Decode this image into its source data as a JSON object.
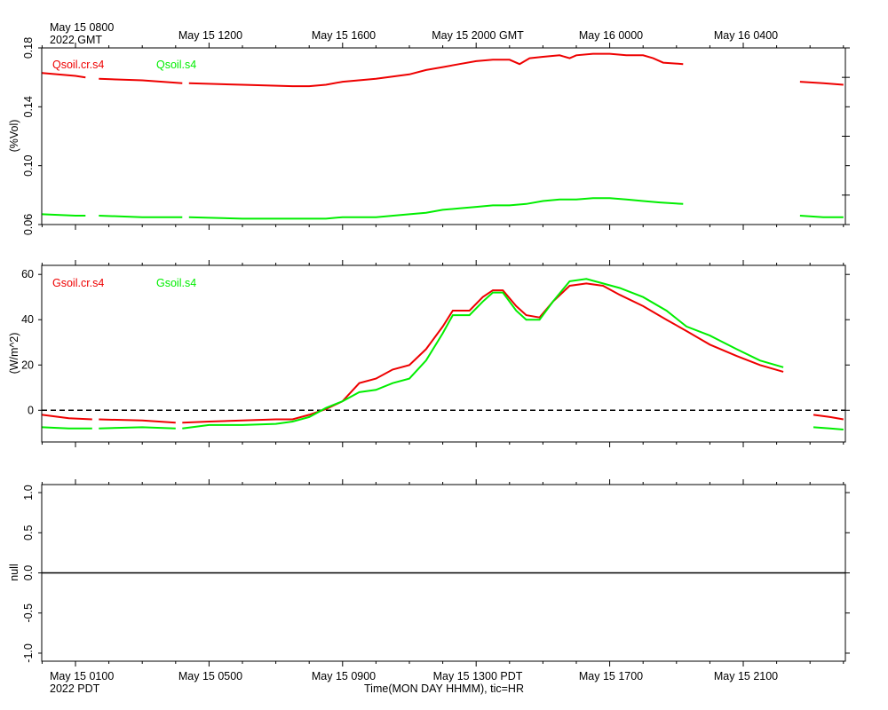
{
  "top_axis": {
    "labels": [
      "May 15 0800",
      "May 15 1200",
      "May 15 1600",
      "May 15 2000 GMT",
      "May 16 0000",
      "May 16 0400"
    ],
    "year_label": "2022 GMT"
  },
  "bottom_axis": {
    "labels": [
      "May 15 0100",
      "May 15 0500",
      "May 15 0900",
      "May 15 1300 PDT",
      "May 15 1700",
      "May 15 2100"
    ],
    "year_label": "2022 PDT",
    "title": "Time(MON DAY HHMM), tic=HR"
  },
  "colors": {
    "red": "#ee0000",
    "green": "#00ee00"
  },
  "chart_data": [
    {
      "type": "line",
      "ylabel": "(%Vol)",
      "ylim": [
        0.06,
        0.18
      ],
      "yticks": [
        0.06,
        0.1,
        0.14,
        0.18
      ],
      "ytick_labels": [
        "0.06",
        "0.10",
        "0.14",
        "0.18"
      ],
      "xunit": "hours since May 15 0000 PDT",
      "xlim": [
        0,
        24
      ],
      "series": [
        {
          "name": "Qsoil.cr.s4",
          "color": "#ee0000",
          "segments": [
            [
              [
                0,
                0.163
              ],
              [
                1.0,
                0.161
              ],
              [
                1.3,
                0.16
              ]
            ],
            [
              [
                1.7,
                0.159
              ],
              [
                3,
                0.158
              ],
              [
                4.2,
                0.156
              ]
            ],
            [
              [
                4.4,
                0.156
              ],
              [
                6,
                0.155
              ],
              [
                7.5,
                0.154
              ],
              [
                8,
                0.154
              ],
              [
                8.5,
                0.155
              ],
              [
                9,
                0.157
              ],
              [
                10,
                0.159
              ],
              [
                11,
                0.162
              ],
              [
                11.5,
                0.165
              ],
              [
                12,
                0.167
              ],
              [
                12.5,
                0.169
              ],
              [
                13,
                0.171
              ],
              [
                13.5,
                0.172
              ],
              [
                14,
                0.172
              ],
              [
                14.3,
                0.169
              ],
              [
                14.6,
                0.173
              ],
              [
                15,
                0.174
              ],
              [
                15.5,
                0.175
              ],
              [
                15.8,
                0.173
              ],
              [
                16,
                0.175
              ],
              [
                16.5,
                0.176
              ],
              [
                17,
                0.176
              ],
              [
                17.5,
                0.175
              ],
              [
                18,
                0.175
              ],
              [
                18.3,
                0.173
              ],
              [
                18.6,
                0.17
              ],
              [
                19.2,
                0.169
              ]
            ]
          ],
          "segments2": [
            [
              [
                22.7,
                0.157
              ],
              [
                23.4,
                0.156
              ],
              [
                24,
                0.155
              ]
            ]
          ]
        },
        {
          "name": "Qsoil.s4",
          "color": "#00ee00",
          "segments": [
            [
              [
                0,
                0.067
              ],
              [
                1.0,
                0.066
              ],
              [
                1.3,
                0.066
              ]
            ],
            [
              [
                1.7,
                0.066
              ],
              [
                3,
                0.065
              ],
              [
                4.2,
                0.065
              ]
            ],
            [
              [
                4.4,
                0.065
              ],
              [
                6,
                0.064
              ],
              [
                7.5,
                0.064
              ],
              [
                8.5,
                0.064
              ],
              [
                9,
                0.065
              ],
              [
                10,
                0.065
              ],
              [
                11,
                0.067
              ],
              [
                11.5,
                0.068
              ],
              [
                12,
                0.07
              ],
              [
                12.5,
                0.071
              ],
              [
                13,
                0.072
              ],
              [
                13.5,
                0.073
              ],
              [
                14,
                0.073
              ],
              [
                14.5,
                0.074
              ],
              [
                15,
                0.076
              ],
              [
                15.5,
                0.077
              ],
              [
                16,
                0.077
              ],
              [
                16.5,
                0.078
              ],
              [
                17,
                0.078
              ],
              [
                17.5,
                0.077
              ],
              [
                18,
                0.076
              ],
              [
                18.5,
                0.075
              ],
              [
                19.2,
                0.074
              ]
            ]
          ],
          "segments2": [
            [
              [
                22.7,
                0.066
              ],
              [
                23.4,
                0.065
              ],
              [
                24,
                0.065
              ]
            ]
          ]
        }
      ]
    },
    {
      "type": "line",
      "ylabel": "(W/m^2)",
      "ylim": [
        -14,
        64
      ],
      "yticks": [
        0,
        20,
        40,
        60
      ],
      "ytick_labels": [
        "0",
        "20",
        "40",
        "60"
      ],
      "reference_line": 0,
      "xunit": "hours since May 15 0000 PDT",
      "xlim": [
        0,
        24
      ],
      "series": [
        {
          "name": "Gsoil.cr.s4",
          "color": "#ee0000",
          "segments": [
            [
              [
                0,
                -2
              ],
              [
                0.8,
                -3.5
              ],
              [
                1.5,
                -4
              ]
            ],
            [
              [
                1.7,
                -4
              ],
              [
                3,
                -4.5
              ],
              [
                4.0,
                -5.5
              ]
            ],
            [
              [
                4.2,
                -5.5
              ],
              [
                5,
                -5
              ],
              [
                6,
                -4.5
              ],
              [
                7,
                -4
              ],
              [
                7.5,
                -4
              ],
              [
                8,
                -2
              ],
              [
                8.5,
                0.5
              ],
              [
                9,
                4
              ],
              [
                9.5,
                12
              ],
              [
                10,
                14
              ],
              [
                10.5,
                18
              ],
              [
                11,
                20
              ],
              [
                11.5,
                27
              ],
              [
                12,
                37
              ],
              [
                12.3,
                44
              ],
              [
                12.8,
                44
              ],
              [
                13.2,
                50
              ],
              [
                13.5,
                53
              ],
              [
                13.8,
                53
              ],
              [
                14.2,
                46
              ],
              [
                14.5,
                42
              ],
              [
                14.9,
                41
              ],
              [
                15.3,
                48
              ],
              [
                15.8,
                55
              ],
              [
                16.3,
                56
              ],
              [
                16.8,
                55
              ],
              [
                17.3,
                51
              ],
              [
                18,
                46
              ],
              [
                18.7,
                40
              ],
              [
                19.3,
                35
              ],
              [
                20,
                29
              ],
              [
                20.8,
                24
              ],
              [
                21.5,
                20
              ],
              [
                22.2,
                17
              ]
            ]
          ],
          "segments2": [
            [
              [
                23.1,
                -2
              ],
              [
                23.6,
                -3
              ],
              [
                24,
                -4
              ]
            ]
          ]
        },
        {
          "name": "Gsoil.s4",
          "color": "#00ee00",
          "segments": [
            [
              [
                0,
                -7.5
              ],
              [
                0.8,
                -8
              ],
              [
                1.5,
                -8
              ]
            ],
            [
              [
                1.7,
                -8
              ],
              [
                3,
                -7.5
              ],
              [
                4.0,
                -8
              ]
            ],
            [
              [
                4.2,
                -8
              ],
              [
                5,
                -6.5
              ],
              [
                6,
                -6.5
              ],
              [
                7,
                -6
              ],
              [
                7.5,
                -5
              ],
              [
                8,
                -3
              ],
              [
                8.5,
                1
              ],
              [
                9,
                4
              ],
              [
                9.5,
                8
              ],
              [
                10,
                9
              ],
              [
                10.5,
                12
              ],
              [
                11,
                14
              ],
              [
                11.5,
                22
              ],
              [
                12,
                34
              ],
              [
                12.3,
                42
              ],
              [
                12.8,
                42
              ],
              [
                13.2,
                48
              ],
              [
                13.5,
                52
              ],
              [
                13.8,
                52
              ],
              [
                14.2,
                44
              ],
              [
                14.5,
                40
              ],
              [
                14.9,
                40
              ],
              [
                15.3,
                48
              ],
              [
                15.8,
                57
              ],
              [
                16.3,
                58
              ],
              [
                16.8,
                56
              ],
              [
                17.3,
                54
              ],
              [
                18,
                50
              ],
              [
                18.7,
                44
              ],
              [
                19.3,
                37
              ],
              [
                20,
                33
              ],
              [
                20.8,
                27
              ],
              [
                21.5,
                22
              ],
              [
                22.2,
                19
              ]
            ]
          ],
          "segments2": [
            [
              [
                23.1,
                -7.5
              ],
              [
                23.6,
                -8
              ],
              [
                24,
                -8.5
              ]
            ]
          ]
        }
      ]
    },
    {
      "type": "line",
      "ylabel": "null",
      "ylim": [
        -1.1,
        1.1
      ],
      "yticks": [
        -1.0,
        -0.5,
        0.0,
        0.5,
        1.0
      ],
      "ytick_labels": [
        "-1.0",
        "-0.5",
        "0.0",
        "0.5",
        "1.0"
      ],
      "reference_line": 0,
      "series": []
    }
  ]
}
